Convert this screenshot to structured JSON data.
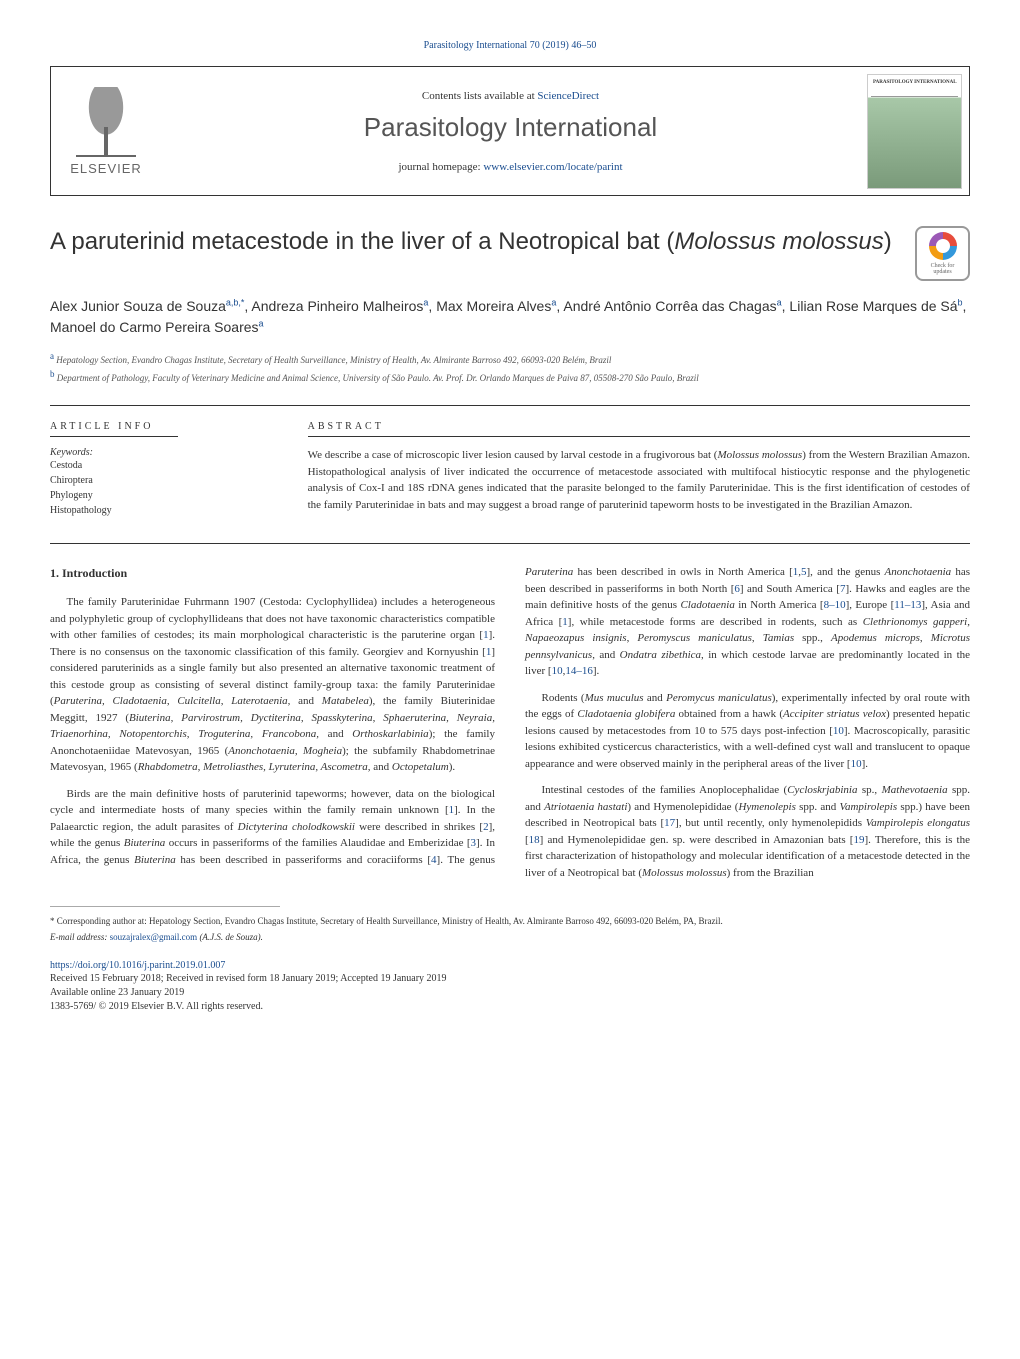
{
  "top_reference": "Parasitology International 70 (2019) 46–50",
  "header": {
    "contents_prefix": "Contents lists available at ",
    "contents_link": "ScienceDirect",
    "journal_name": "Parasitology International",
    "homepage_prefix": "journal homepage: ",
    "homepage_link": "www.elsevier.com/locate/parint",
    "publisher": "ELSEVIER",
    "cover_text": "PARASITOLOGY INTERNATIONAL"
  },
  "check_updates": {
    "line1": "Check for",
    "line2": "updates"
  },
  "title_pre": "A paruterinid metacestode in the liver of a Neotropical bat (",
  "title_italic": "Molossus molossus",
  "title_post": ")",
  "authors_html": "Alex Junior Souza de Souza<sup class='sup'>a,b,*</sup>, Andreza Pinheiro Malheiros<sup class='sup'>a</sup>, Max Moreira Alves<sup class='sup'>a</sup>, André Antônio Corrêa das Chagas<sup class='sup'>a</sup>, Lilian Rose Marques de Sá<sup class='sup'>b</sup>, Manoel do Carmo Pereira Soares<sup class='sup'>a</sup>",
  "affiliations": [
    {
      "sup": "a",
      "text": "Hepatology Section, Evandro Chagas Institute, Secretary of Health Surveillance, Ministry of Health, Av. Almirante Barroso 492, 66093-020 Belém, Brazil"
    },
    {
      "sup": "b",
      "text": "Department of Pathology, Faculty of Veterinary Medicine and Animal Science, University of São Paulo. Av. Prof. Dr. Orlando Marques de Paiva 87, 05508-270 São Paulo, Brazil"
    }
  ],
  "info_heading": "ARTICLE INFO",
  "abstract_heading": "ABSTRACT",
  "keywords_label": "Keywords:",
  "keywords": [
    "Cestoda",
    "Chiroptera",
    "Phylogeny",
    "Histopathology"
  ],
  "abstract_text": "We describe a case of microscopic liver lesion caused by larval cestode in a frugivorous bat (<span class='italic'>Molossus molossus</span>) from the Western Brazilian Amazon. Histopathological analysis of liver indicated the occurrence of metacestode associated with multifocal histiocytic response and the phylogenetic analysis of Cox-I and 18S rDNA genes indicated that the parasite belonged to the family Paruterinidae. This is the first identification of cestodes of the family Paruterinidae in bats and may suggest a broad range of paruterinid tapeworm hosts to be investigated in the Brazilian Amazon.",
  "section1_heading": "1. Introduction",
  "body_html": "<p>The family Paruterinidae Fuhrmann 1907 (Cestoda: Cyclophyllidea) includes a heterogeneous and polyphyletic group of cyclophyllideans that does not have taxonomic characteristics compatible with other families of cestodes; its main morphological characteristic is the paruterine organ [<span class='ref'>1</span>]. There is no consensus on the taxonomic classification of this family. Georgiev and Kornyushin [<span class='ref'>1</span>] considered paruterinids as a single family but also presented an alternative taxonomic treatment of this cestode group as consisting of several distinct family-group taxa: the family Paruterinidae (<span class='italic'>Paruterina, Cladotaenia, Culcitella, Laterotaenia,</span> and <span class='italic'>Matabelea</span>), the family Biuterinidae Meggitt, 1927 (<span class='italic'>Biuterina, Parvirostrum, Dyctiterina, Spasskyterina, Sphaeruterina, Neyraia, Triaenorhina, Notopentorchis, Troguterina, Francobona,</span> and <span class='italic'>Orthoskarlabinia</span>); the family Anonchotaeniidae Matevosyan, 1965 (<span class='italic'>Anonchotaenia, Mogheia</span>); the subfamily Rhabdometrinae Matevosyan, 1965 (<span class='italic'>Rhabdometra, Metroliasthes, Lyruterina, Ascometra,</span> and <span class='italic'>Octopetalum</span>).</p><p>Birds are the main definitive hosts of paruterinid tapeworms; however, data on the biological cycle and intermediate hosts of many species within the family remain unknown [<span class='ref'>1</span>]. In the Palaearctic region, the adult parasites of <span class='italic'>Dictyterina cholodkowskii</span> were described in shrikes [<span class='ref'>2</span>], while the genus <span class='italic'>Biuterina</span> occurs in passeriforms of the families Alaudidae and Emberizidae [<span class='ref'>3</span>]. In Africa, the genus <span class='italic'>Biuterina</span> has been described in passeriforms and coraciiforms [<span class='ref'>4</span>]. The genus <span class='italic'>Paruterina</span> has been described in owls in North America [<span class='ref'>1</span>,<span class='ref'>5</span>], and the genus <span class='italic'>Anonchotaenia</span> has been described in passeriforms in both North [<span class='ref'>6</span>] and South America [<span class='ref'>7</span>]. Hawks and eagles are the main definitive hosts of the genus <span class='italic'>Cladotaenia</span> in North America [<span class='ref'>8–10</span>], Europe [<span class='ref'>11–13</span>], Asia and Africa [<span class='ref'>1</span>], while metacestode forms are described in rodents, such as <span class='italic'>Clethrionomys gapperi</span>, <span class='italic'>Napaeozapus insignis</span>, <span class='italic'>Peromyscus maniculatus</span>, <span class='italic'>Tamias</span> spp., <span class='italic'>Apodemus microps</span>, <span class='italic'>Microtus pennsylvanicus</span>, and <span class='italic'>Ondatra zibethica</span>, in which cestode larvae are predominantly located in the liver [<span class='ref'>10</span>,<span class='ref'>14–16</span>].</p><p>Rodents (<span class='italic'>Mus muculus</span> and <span class='italic'>Peromycus maniculatus</span>), experimentally infected by oral route with the eggs of <span class='italic'>Cladotaenia globifera</span> obtained from a hawk (<span class='italic'>Accipiter striatus velox</span>) presented hepatic lesions caused by metacestodes from 10 to 575 days post-infection [<span class='ref'>10</span>]. Macroscopically, parasitic lesions exhibited cysticercus characteristics, with a well-defined cyst wall and translucent to opaque appearance and were observed mainly in the peripheral areas of the liver [<span class='ref'>10</span>].</p><p>Intestinal cestodes of the families Anoplocephalidae (<span class='italic'>Cycloskrjabinia</span> sp., <span class='italic'>Mathevotaenia</span> spp. and <span class='italic'>Atriotaenia hastati</span>) and Hymenolepididae (<span class='italic'>Hymenolepis</span> spp. and <span class='italic'>Vampirolepis</span> spp.) have been described in Neotropical bats [<span class='ref'>17</span>], but until recently, only hymenolepidids <span class='italic'>Vampirolepis elongatus</span> [<span class='ref'>18</span>] and Hymenolepididae gen. sp. were described in Amazonian bats [<span class='ref'>19</span>]. Therefore, this is the first characterization of histopathology and molecular identification of a metacestode detected in the liver of a Neotropical bat (<span class='italic'>Molossus molossus</span>) from the Brazilian</p>",
  "corresponding": "* Corresponding author at: Hepatology Section, Evandro Chagas Institute, Secretary of Health Surveillance, Ministry of Health, Av. Almirante Barroso 492, 66093-020 Belém, PA, Brazil.",
  "email_label": "E-mail address: ",
  "email": "souzajralex@gmail.com",
  "email_suffix": " (A.J.S. de Souza).",
  "doi": "https://doi.org/10.1016/j.parint.2019.01.007",
  "received": "Received 15 February 2018; Received in revised form 18 January 2019; Accepted 19 January 2019",
  "available": "Available online 23 January 2019",
  "copyright": "1383-5769/ © 2019 Elsevier B.V. All rights reserved."
}
